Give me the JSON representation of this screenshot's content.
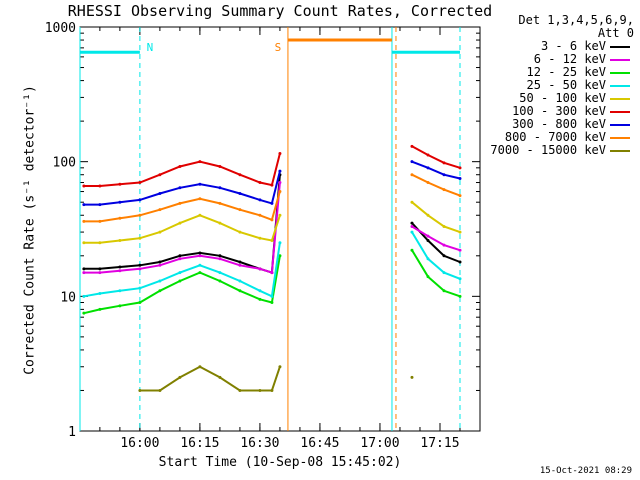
{
  "title": "RHESSI Observing Summary Count Rates, Corrected",
  "legend": {
    "header_line1": "Det 1,3,4,5,6,9,",
    "header_line2": "Att 0"
  },
  "footer_stamp": "15-Oct-2021 08:29",
  "chart_data": {
    "type": "line",
    "title": "RHESSI Observing Summary Count Rates, Corrected",
    "xlabel": "Start Time (10-Sep-08 15:45:02)",
    "ylabel": "Corrected Count Rate (s⁻¹ detector⁻¹)",
    "y_scale": "log",
    "ylim": [
      1,
      1000
    ],
    "xlim": [
      "15:45:02",
      "17:25:00"
    ],
    "x_ticks": [
      "16:00",
      "16:15",
      "16:30",
      "16:45",
      "17:00",
      "17:15"
    ],
    "y_ticks": [
      {
        "value": 1,
        "label": "1"
      },
      {
        "value": 10,
        "label": "10"
      },
      {
        "value": 100,
        "label": "100"
      },
      {
        "value": 1000,
        "label": "1000"
      }
    ],
    "grid": false,
    "legend_position": "top-right, outside plot",
    "x": [
      "15:46",
      "15:50",
      "15:55",
      "16:00",
      "16:05",
      "16:10",
      "16:15",
      "16:20",
      "16:25",
      "16:30",
      "16:33",
      "16:35",
      "17:05",
      "17:08",
      "17:12",
      "17:16",
      "17:20"
    ],
    "series": [
      {
        "name": "3 - 6 keV",
        "color": "#000000",
        "values": [
          16,
          16,
          16.5,
          17,
          18,
          20,
          21,
          20,
          18,
          16,
          15,
          80,
          null,
          35,
          26,
          20,
          18
        ]
      },
      {
        "name": "6 - 12 keV",
        "color": "#e000e0",
        "values": [
          15,
          15,
          15.5,
          16,
          17,
          19,
          20,
          19,
          17,
          16,
          15,
          70,
          null,
          33,
          28,
          24,
          22
        ]
      },
      {
        "name": "12 - 25 keV",
        "color": "#00e000",
        "values": [
          7.5,
          8,
          8.5,
          9,
          11,
          13,
          15,
          13,
          11,
          9.5,
          9,
          20,
          null,
          22,
          14,
          11,
          10
        ]
      },
      {
        "name": "25 - 50 keV",
        "color": "#00e8e8",
        "values": [
          10,
          10.5,
          11,
          11.5,
          13,
          15,
          17,
          15,
          13,
          11,
          10,
          25,
          null,
          30,
          19,
          15,
          13.5
        ]
      },
      {
        "name": "50 - 100 keV",
        "color": "#d8c800",
        "values": [
          25,
          25,
          26,
          27,
          30,
          35,
          40,
          35,
          30,
          27,
          26,
          40,
          null,
          50,
          40,
          33,
          30
        ]
      },
      {
        "name": "100 - 300 keV",
        "color": "#e00000",
        "values": [
          66,
          66,
          68,
          70,
          80,
          92,
          100,
          92,
          80,
          70,
          67,
          115,
          null,
          130,
          112,
          98,
          90
        ]
      },
      {
        "name": "300 - 800 keV",
        "color": "#0000e0",
        "values": [
          48,
          48,
          50,
          52,
          58,
          64,
          68,
          64,
          58,
          52,
          49,
          85,
          null,
          100,
          90,
          80,
          75
        ]
      },
      {
        "name": "800 - 7000 keV",
        "color": "#ff8000",
        "values": [
          36,
          36,
          38,
          40,
          44,
          49,
          53,
          49,
          44,
          40,
          37,
          60,
          null,
          80,
          70,
          62,
          56
        ]
      },
      {
        "name": "7000 - 15000 keV",
        "color": "#808000",
        "values": [
          null,
          null,
          null,
          2,
          2,
          2.5,
          3,
          2.5,
          2,
          2,
          2,
          3,
          null,
          2.5,
          null,
          null,
          null
        ]
      }
    ],
    "annotations": [
      {
        "text": "N",
        "color": "#00e8e8",
        "at_time": "16:00"
      },
      {
        "text": "S",
        "color": "#ff8000",
        "at_time": "16:37"
      }
    ],
    "state_bars": [
      {
        "label_ref": "N",
        "color": "#00e8e8",
        "level": 650,
        "from": "15:45:02",
        "to": "16:00"
      },
      {
        "label_ref": "S",
        "color": "#ff8000",
        "level": 800,
        "from": "16:37",
        "to": "17:03"
      },
      {
        "label_ref": "N",
        "color": "#00e8e8",
        "level": 650,
        "from": "17:03",
        "to": "17:20"
      }
    ],
    "state_lines": [
      {
        "color": "#00e8e8",
        "style": "dashed",
        "time": "16:00"
      },
      {
        "color": "#00e8e8",
        "style": "dashed",
        "time": "17:20"
      },
      {
        "color": "#00e8e8",
        "style": "solid",
        "time": "15:45:02"
      },
      {
        "color": "#00e8e8",
        "style": "solid",
        "time": "17:03"
      },
      {
        "color": "#ff8000",
        "style": "solid",
        "time": "16:37"
      },
      {
        "color": "#ff8000",
        "style": "dashed",
        "time": "17:04"
      }
    ]
  }
}
